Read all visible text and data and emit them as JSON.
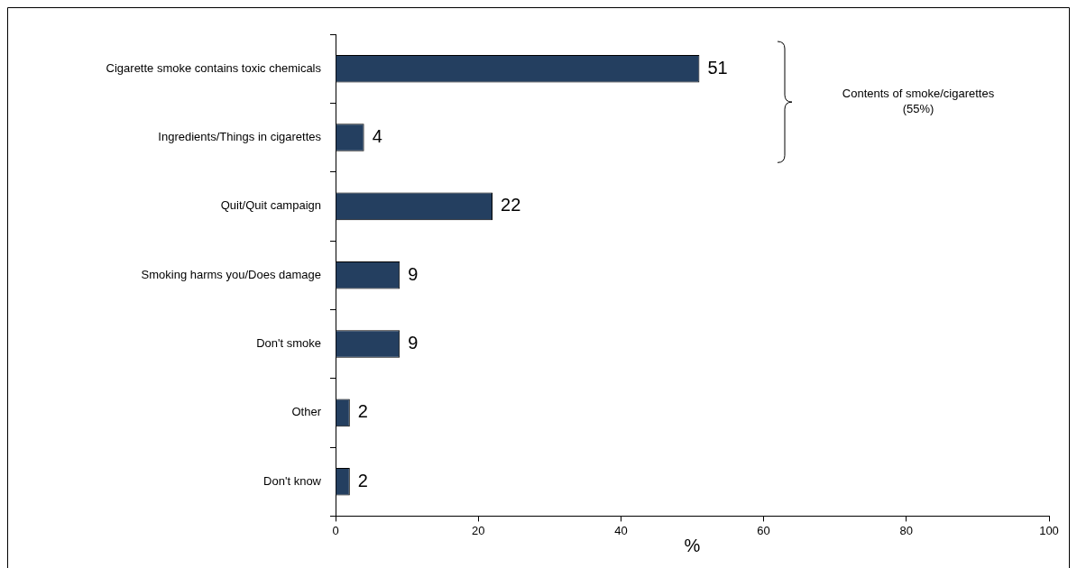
{
  "chart_data": {
    "type": "bar",
    "orientation": "horizontal",
    "categories": [
      "Cigarette smoke contains toxic chemicals",
      "Ingredients/Things in cigarettes",
      "Quit/Quit campaign",
      "Smoking harms you/Does damage",
      "Don't smoke",
      "Other",
      "Don't know"
    ],
    "values": [
      51,
      4,
      22,
      9,
      9,
      2,
      2
    ],
    "color": "#243f60",
    "xlim": [
      0,
      100
    ],
    "xticks": [
      0,
      20,
      40,
      60,
      80,
      100
    ],
    "xlabel": "%",
    "data_labels": true,
    "grid": false,
    "legend": false,
    "annotations": [
      "Contents of smoke/cigarettes (55%)"
    ]
  }
}
